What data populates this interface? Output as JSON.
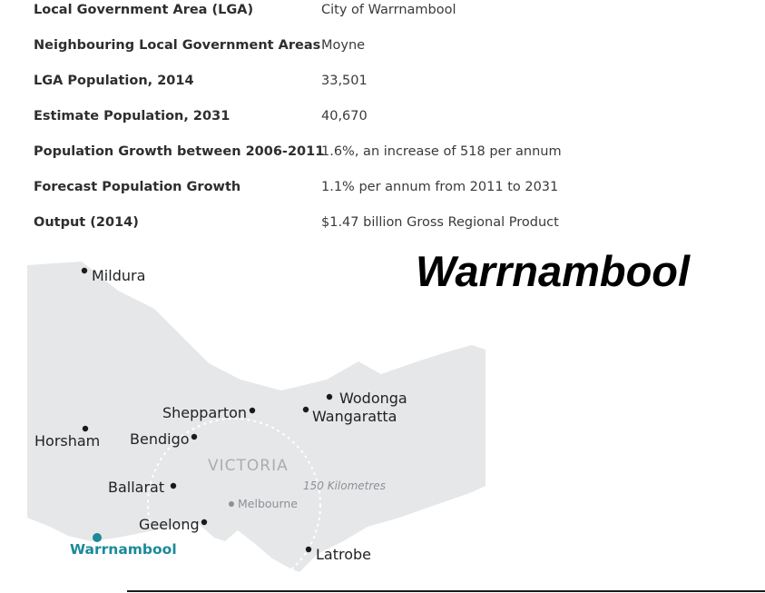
{
  "stats": [
    {
      "label": "Local Government Area (LGA)",
      "value": "City of Warrnambool"
    },
    {
      "label": "Neighbouring Local Government Areas",
      "value": "Moyne"
    },
    {
      "label": "LGA Population, 2014",
      "value": "33,501"
    },
    {
      "label": "Estimate Population, 2031",
      "value": "40,670"
    },
    {
      "label": "Population Growth between 2006-2011",
      "value": "1.6%, an increase of 518 per annum"
    },
    {
      "label": "Forecast Population Growth",
      "value": "1.1% per annum from 2011 to 2031"
    },
    {
      "label": "Output (2014)",
      "value": "$1.47 billion Gross Regional Product"
    }
  ],
  "map": {
    "title": "Warrnambool",
    "state_label": "VICTORIA",
    "distance_label": "150 Kilometres",
    "highlight_city": "Warrnambool",
    "capital": "Melbourne",
    "cities": {
      "mildura": "Mildura",
      "wodonga": "Wodonga",
      "wangaratta": "Wangaratta",
      "shepparton": "Shepparton",
      "horsham": "Horsham",
      "bendigo": "Bendigo",
      "ballarat": "Ballarat",
      "geelong": "Geelong",
      "latrobe": "Latrobe"
    },
    "colors": {
      "land": "#e6e7e8",
      "highlight": "#1b8a99",
      "dot": "#1a1a1a"
    }
  }
}
